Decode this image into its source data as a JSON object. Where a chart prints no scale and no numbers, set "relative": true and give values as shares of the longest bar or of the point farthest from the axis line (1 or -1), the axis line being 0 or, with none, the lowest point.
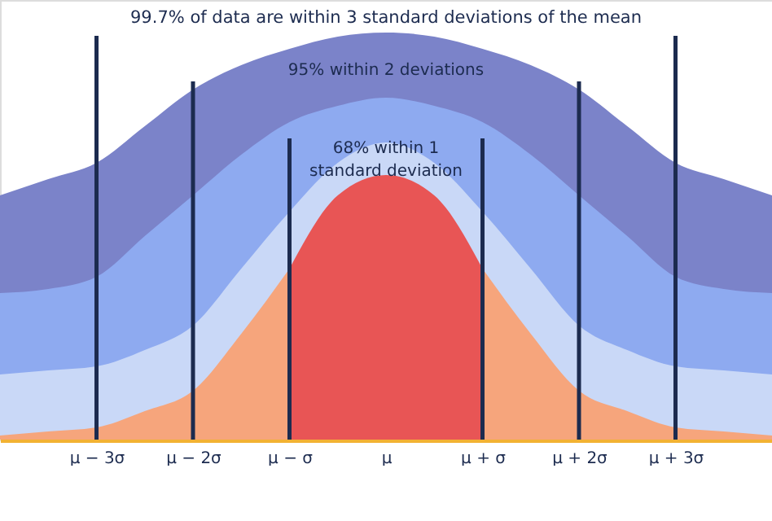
{
  "chart_data": {
    "type": "area",
    "relative": true,
    "x": [
      -4,
      -3.5,
      -3,
      -2.5,
      -2,
      -1.5,
      -1,
      -0.5,
      0,
      0.5,
      1,
      1.5,
      2,
      2.5,
      3,
      3.5,
      4
    ],
    "xlim": [
      -4,
      4
    ],
    "xticks": [
      {
        "value": -3,
        "label": "μ − 3σ"
      },
      {
        "value": -2,
        "label": "μ − 2σ"
      },
      {
        "value": -1,
        "label": "μ − σ"
      },
      {
        "value": 0,
        "label": "μ"
      },
      {
        "value": 1,
        "label": "μ + σ"
      },
      {
        "value": 2,
        "label": "μ + 2σ"
      },
      {
        "value": 3,
        "label": "μ + 3σ"
      }
    ],
    "series": [
      {
        "color": "#7b83c9",
        "values": [
          0.6,
          0.64,
          0.68,
          0.77,
          0.86,
          0.92,
          0.96,
          0.99,
          1,
          0.99,
          0.96,
          0.92,
          0.86,
          0.77,
          0.68,
          0.64,
          0.6
        ]
      },
      {
        "color": "#8eaaf0",
        "values": [
          0.36,
          0.37,
          0.4,
          0.5,
          0.6,
          0.7,
          0.78,
          0.82,
          0.84,
          0.82,
          0.78,
          0.7,
          0.6,
          0.5,
          0.4,
          0.37,
          0.36
        ]
      },
      {
        "color": "#c9d8f7",
        "values": [
          0.16,
          0.17,
          0.18,
          0.22,
          0.28,
          0.42,
          0.56,
          0.68,
          0.73,
          0.68,
          0.56,
          0.42,
          0.28,
          0.22,
          0.18,
          0.17,
          0.16
        ]
      },
      {
        "color": "#f6a57c",
        "values": [
          0.01,
          0.02,
          0.03,
          0.07,
          0.12,
          0.26,
          0.42,
          null,
          null,
          null,
          0.42,
          0.26,
          0.12,
          0.07,
          0.03,
          0.02,
          0.01
        ]
      },
      {
        "color": "#e85555",
        "x": [
          -1,
          -0.5,
          0,
          0.5,
          1
        ],
        "values": [
          0.42,
          0.6,
          0.65,
          0.6,
          0.42
        ]
      }
    ],
    "ref_lines": [
      {
        "axis": "x",
        "value": -3,
        "color": "#1c2b4f"
      },
      {
        "axis": "x",
        "value": -2,
        "color": "#1c2b4f"
      },
      {
        "axis": "x",
        "value": -1,
        "color": "#1c2b4f"
      },
      {
        "axis": "x",
        "value": 1,
        "color": "#1c2b4f"
      },
      {
        "axis": "x",
        "value": 2,
        "color": "#1c2b4f"
      },
      {
        "axis": "x",
        "value": 3,
        "color": "#1c2b4f"
      }
    ],
    "annotations": [
      "99.7% of data are within 3 standard deviations of the mean",
      "95% within 2 deviations",
      "68% within 1 standard deviation"
    ],
    "tick_labels": "x"
  }
}
